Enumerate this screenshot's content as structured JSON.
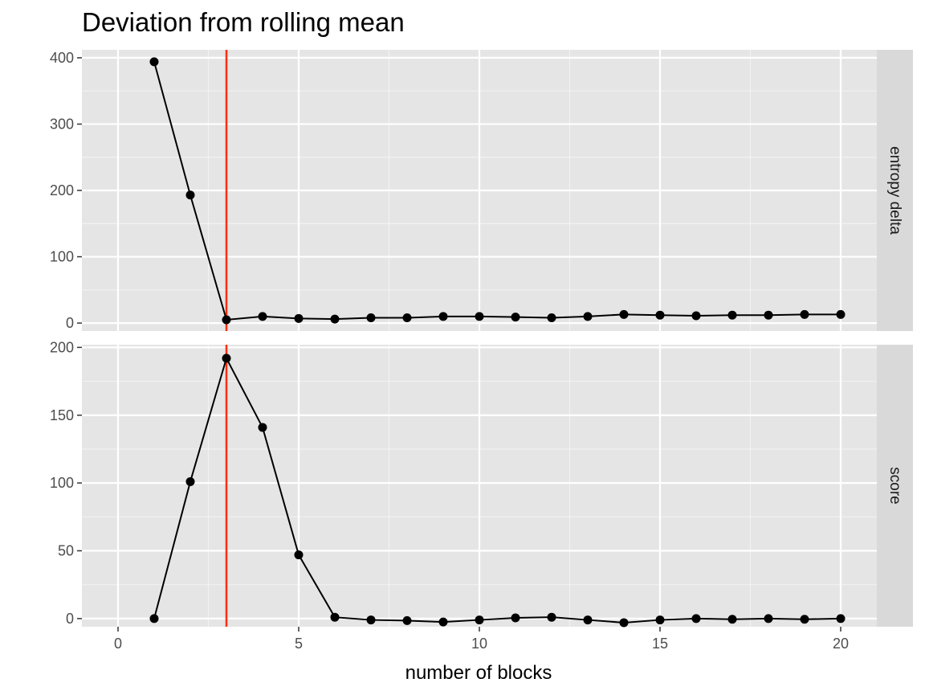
{
  "chart_data": {
    "type": "line",
    "title": "Deviation from rolling mean",
    "xlabel": "number of blocks",
    "ylabel": "",
    "xlim": [
      -1,
      21
    ],
    "x_ticks": [
      0,
      5,
      10,
      15,
      20
    ],
    "x": [
      1,
      2,
      3,
      4,
      5,
      6,
      7,
      8,
      9,
      10,
      11,
      12,
      13,
      14,
      15,
      16,
      17,
      18,
      19,
      20
    ],
    "vline": {
      "x": 3,
      "color": "#ff2d00"
    },
    "grid": true,
    "facets": [
      {
        "label": "entropy delta",
        "ylim": [
          -12,
          412
        ],
        "y_ticks": [
          0,
          100,
          200,
          300,
          400
        ],
        "values": [
          394,
          193,
          5,
          10,
          7,
          6,
          8,
          8,
          10,
          10,
          9,
          8,
          10,
          13,
          12,
          11,
          12,
          12,
          13,
          13
        ]
      },
      {
        "label": "score",
        "ylim": [
          -6,
          202
        ],
        "y_ticks": [
          0,
          50,
          100,
          150,
          200
        ],
        "values": [
          0,
          101,
          192,
          141,
          47,
          1,
          -1,
          -1.5,
          -2.5,
          -1,
          0.5,
          1,
          -1,
          -3,
          -1,
          0,
          -0.5,
          0,
          -0.5,
          0
        ]
      }
    ]
  }
}
